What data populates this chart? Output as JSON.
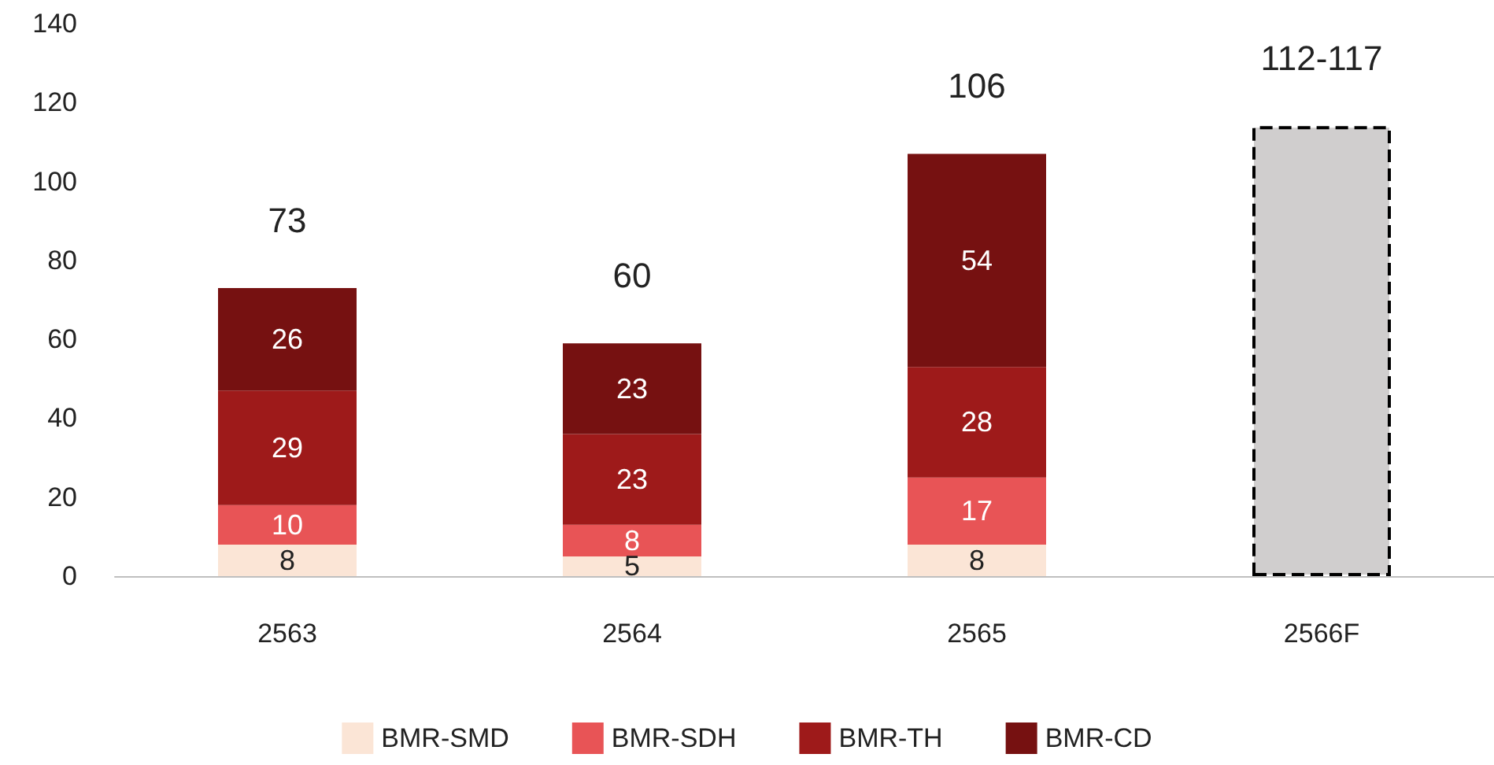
{
  "chart_data": {
    "type": "bar",
    "stacked": true,
    "categories": [
      "2563",
      "2564",
      "2565",
      "2566F"
    ],
    "series": [
      {
        "name": "BMR-SMD",
        "color": "#fbe5d6",
        "values": [
          8,
          5,
          8,
          null
        ],
        "value_labels": [
          "8",
          "5",
          "8",
          null
        ]
      },
      {
        "name": "BMR-SDH",
        "color": "#e85456",
        "values": [
          10,
          8,
          17,
          null
        ],
        "value_labels": [
          "10",
          "8",
          "17",
          null
        ]
      },
      {
        "name": "BMR-TH",
        "color": "#9e1a1a",
        "values": [
          29,
          23,
          28,
          null
        ],
        "value_labels": [
          "29",
          "23",
          "28",
          null
        ]
      },
      {
        "name": "BMR-CD",
        "color": "#761111",
        "values": [
          26,
          23,
          54,
          null
        ],
        "value_labels": [
          "26",
          "23",
          "54",
          null
        ]
      },
      {
        "color": "#d0cece",
        "line_style": "dashed",
        "values": [
          null,
          null,
          null,
          114
        ]
      }
    ],
    "totals": [
      "73",
      "60",
      "106",
      "112-117"
    ],
    "ylim": [
      0,
      140
    ],
    "yticks": [
      0,
      20,
      40,
      60,
      80,
      100,
      120,
      140
    ],
    "grid": false,
    "legend": "bottom"
  }
}
